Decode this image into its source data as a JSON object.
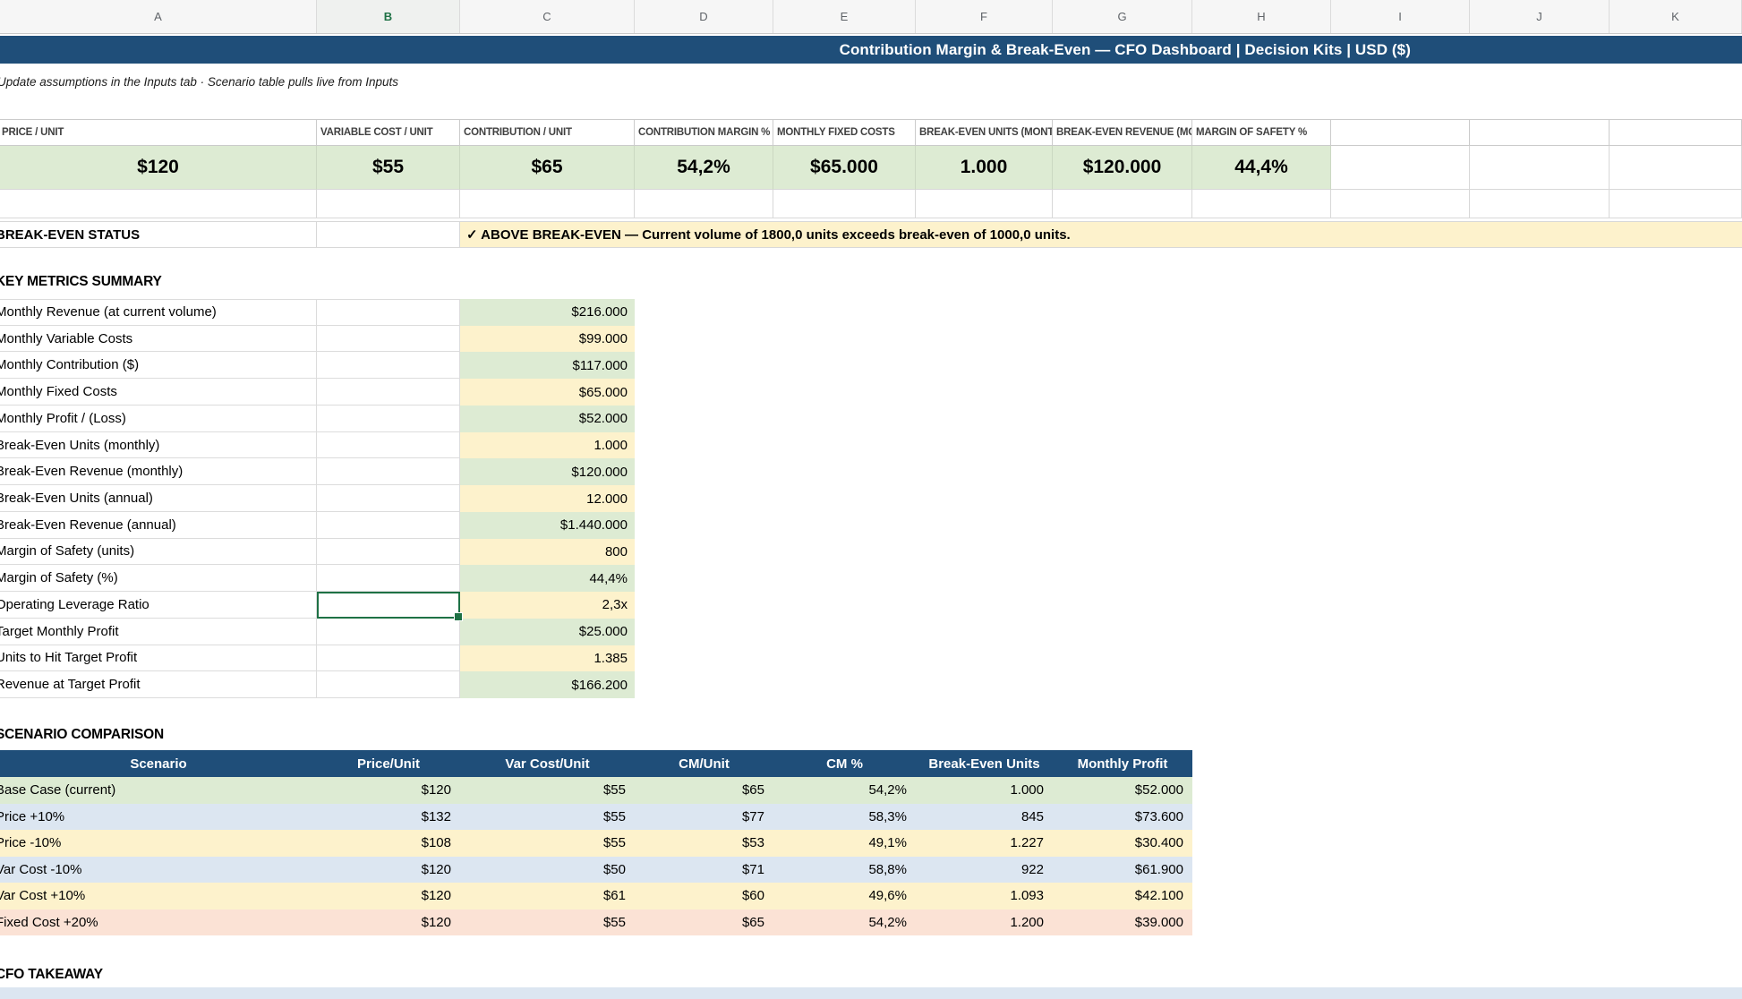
{
  "colors": {
    "title_blue": "#1F4E79",
    "green_cell": "#DDEBD3",
    "yellow_cell": "#FDF2CC",
    "blue_row": "#DCE6F1",
    "pink_row": "#FBE2D5",
    "status_band": "#FDF2CC",
    "bottom_band": "#DCE6F1",
    "selection_green": "#1E7145"
  },
  "column_strip": {
    "letters": [
      "A",
      "B",
      "C",
      "D",
      "E",
      "F",
      "G",
      "H",
      "I",
      "J",
      "K"
    ],
    "selected_letter": "B"
  },
  "title_bar": {
    "text": "Contribution Margin & Break-Even — CFO Dashboard  |  Decision Kits  |  USD ($)"
  },
  "subtitle": {
    "text": "Update assumptions in the Inputs tab  ·  Scenario table pulls live from Inputs"
  },
  "assumptions": {
    "headers": [
      "PRICE / UNIT",
      "VARIABLE COST / UNIT",
      "CONTRIBUTION / UNIT",
      "CONTRIBUTION MARGIN %",
      "MONTHLY FIXED COSTS",
      "BREAK-EVEN UNITS (MONTHLY)",
      "BREAK-EVEN REVENUE (MONTHLY)",
      "MARGIN OF SAFETY %"
    ],
    "values": [
      "$120",
      "$55",
      "$65",
      "54,2%",
      "$65.000",
      "1.000",
      "$120.000",
      "44,4%"
    ]
  },
  "break_even_status": {
    "label": "BREAK-EVEN STATUS",
    "message": "✓ ABOVE BREAK-EVEN — Current volume of 1800,0 units exceeds break-even of 1000,0 units."
  },
  "key_metrics": {
    "title": "KEY METRICS SUMMARY",
    "rows": [
      {
        "label": "Monthly Revenue (at current volume)",
        "value": "$216.000"
      },
      {
        "label": "Monthly Variable Costs",
        "value": "$99.000"
      },
      {
        "label": "Monthly Contribution ($)",
        "value": "$117.000"
      },
      {
        "label": "Monthly Fixed Costs",
        "value": "$65.000"
      },
      {
        "label": "Monthly Profit / (Loss)",
        "value": "$52.000"
      },
      {
        "label": "Break-Even Units (monthly)",
        "value": "1.000"
      },
      {
        "label": "Break-Even Revenue (monthly)",
        "value": "$120.000"
      },
      {
        "label": "Break-Even Units (annual)",
        "value": "12.000"
      },
      {
        "label": "Break-Even Revenue (annual)",
        "value": "$1.440.000"
      },
      {
        "label": "Margin of Safety (units)",
        "value": "800"
      },
      {
        "label": "Margin of Safety (%)",
        "value": "44,4%"
      },
      {
        "label": "Operating Leverage Ratio",
        "value": "2,3x"
      },
      {
        "label": "Target Monthly Profit",
        "value": "$25.000"
      },
      {
        "label": "Units to Hit Target Profit",
        "value": "1.385"
      },
      {
        "label": "Revenue at Target Profit",
        "value": "$166.200"
      }
    ]
  },
  "scenario_comparison": {
    "title": "SCENARIO COMPARISON",
    "headers": [
      "Scenario",
      "Price/Unit",
      "Var Cost/Unit",
      "CM/Unit",
      "CM %",
      "Break-Even Units",
      "Monthly Profit"
    ],
    "rows": [
      [
        "Base Case (current)",
        "$120",
        "$55",
        "$65",
        "54,2%",
        "1.000",
        "$52.000"
      ],
      [
        "Price +10%",
        "$132",
        "$55",
        "$77",
        "58,3%",
        "845",
        "$73.600"
      ],
      [
        "Price -10%",
        "$108",
        "$55",
        "$53",
        "49,1%",
        "1.227",
        "$30.400"
      ],
      [
        "Var Cost -10%",
        "$120",
        "$50",
        "$71",
        "58,8%",
        "922",
        "$61.900"
      ],
      [
        "Var Cost +10%",
        "$120",
        "$61",
        "$60",
        "49,6%",
        "1.093",
        "$42.100"
      ],
      [
        "Fixed Cost +20%",
        "$120",
        "$55",
        "$65",
        "54,2%",
        "1.200",
        "$39.000"
      ]
    ]
  },
  "cfo_takeaway": {
    "title": "CFO TAKEAWAY"
  }
}
